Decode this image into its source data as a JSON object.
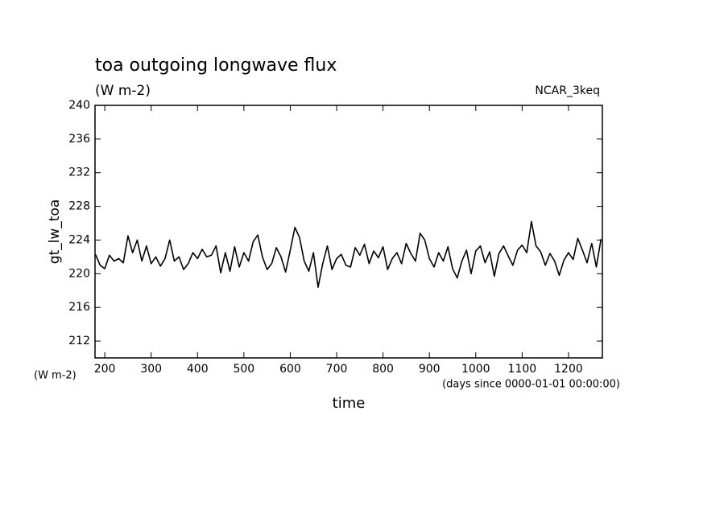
{
  "chart_data": {
    "type": "line",
    "title": "toa outgoing longwave flux",
    "subtitle": "(W m-2)",
    "annotation": "NCAR_3keq",
    "y_label": "gt_lw_toa",
    "y_unit": "(W m-2)",
    "x_unit": "(days since 0000-01-01 00:00:00)",
    "x_label": "time",
    "xlim": [
      179,
      1273
    ],
    "ylim": [
      210,
      240
    ],
    "xticks": [
      200,
      300,
      400,
      500,
      600,
      700,
      800,
      900,
      1000,
      1100,
      1200
    ],
    "yticks": [
      212,
      216,
      220,
      224,
      228,
      232,
      236,
      240
    ],
    "x": [
      180,
      190,
      200,
      210,
      220,
      230,
      240,
      250,
      260,
      270,
      280,
      290,
      300,
      310,
      320,
      330,
      340,
      350,
      360,
      370,
      380,
      390,
      400,
      410,
      420,
      430,
      440,
      450,
      460,
      470,
      480,
      490,
      500,
      510,
      520,
      530,
      540,
      550,
      560,
      570,
      580,
      590,
      600,
      610,
      620,
      630,
      640,
      650,
      660,
      670,
      680,
      690,
      700,
      710,
      720,
      730,
      740,
      750,
      760,
      770,
      780,
      790,
      800,
      810,
      820,
      830,
      840,
      850,
      860,
      870,
      880,
      890,
      900,
      910,
      920,
      930,
      940,
      950,
      960,
      970,
      980,
      990,
      1000,
      1010,
      1020,
      1030,
      1040,
      1050,
      1060,
      1070,
      1080,
      1090,
      1100,
      1110,
      1120,
      1130,
      1140,
      1150,
      1160,
      1170,
      1180,
      1190,
      1200,
      1210,
      1220,
      1230,
      1240,
      1250,
      1260,
      1270
    ],
    "series": [
      {
        "color": "#000000",
        "values": [
          222.3,
          221,
          220.6,
          222.2,
          221.5,
          221.8,
          221.3,
          224.5,
          222.5,
          224,
          221.5,
          223.3,
          221.2,
          222,
          220.9,
          221.8,
          224,
          221.5,
          222,
          220.5,
          221.2,
          222.5,
          221.8,
          222.9,
          222,
          222.2,
          223.3,
          220.1,
          222.5,
          220.3,
          223.2,
          220.8,
          222.5,
          221.5,
          223.8,
          224.6,
          222,
          220.5,
          221.2,
          223.1,
          222,
          220.2,
          222.8,
          225.5,
          224.3,
          221.5,
          220.3,
          222.5,
          218.4,
          221.2,
          223.3,
          220.5,
          221.8,
          222.3,
          221,
          220.8,
          223.1,
          222.2,
          223.5,
          221.2,
          222.7,
          221.9,
          223.2,
          220.5,
          221.8,
          222.5,
          221.2,
          223.6,
          222.4,
          221.5,
          224.8,
          224,
          221.8,
          220.8,
          222.5,
          221.5,
          223.2,
          220.6,
          219.5,
          221.5,
          222.8,
          220,
          222.7,
          223.3,
          221.3,
          222.6,
          219.7,
          222.4,
          223.3,
          222.1,
          221,
          222.8,
          223.4,
          222.5,
          226.2,
          223.3,
          222.6,
          221,
          222.4,
          221.5,
          219.8,
          221.6,
          222.5,
          221.7,
          224.2,
          222.8,
          221.3,
          223.6,
          220.8,
          224.1
        ]
      }
    ]
  }
}
